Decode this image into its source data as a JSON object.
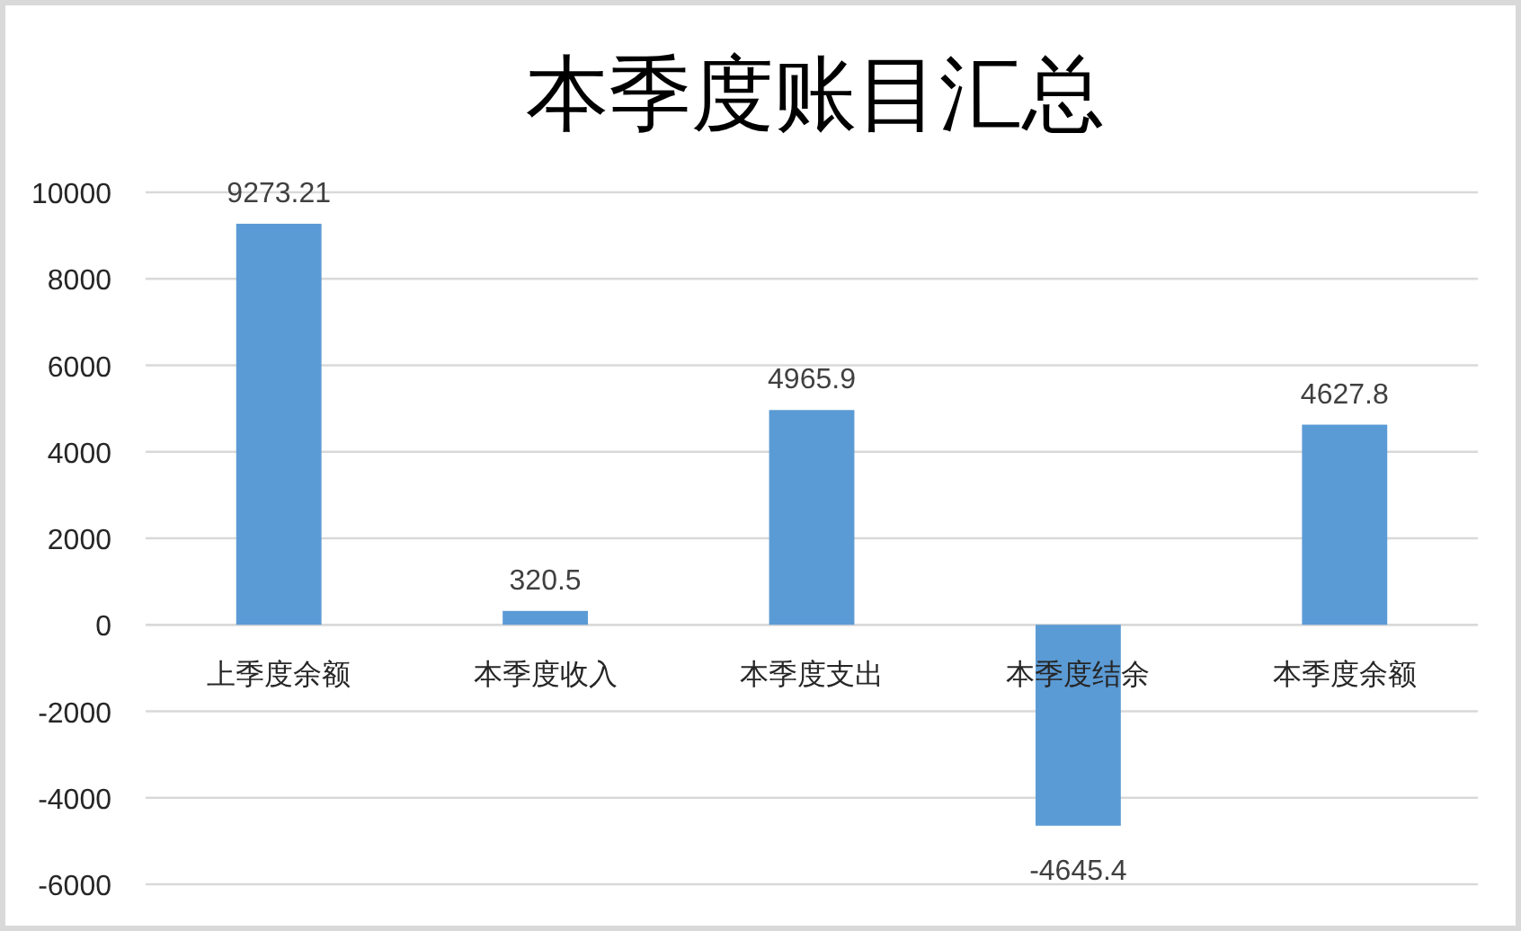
{
  "chart_data": {
    "type": "bar",
    "title": "本季度账目汇总",
    "categories": [
      "上季度余额",
      "本季度收入",
      "本季度支出",
      "本季度结余",
      "本季度余额"
    ],
    "values": [
      9273.21,
      320.5,
      4965.9,
      -4645.4,
      4627.8
    ],
    "color": "#5b9bd5",
    "ylim": [
      -6000,
      10000
    ],
    "yticks": [
      -6000,
      -4000,
      -2000,
      0,
      2000,
      4000,
      6000,
      8000,
      10000
    ],
    "grid": "y",
    "data_labels": true
  }
}
